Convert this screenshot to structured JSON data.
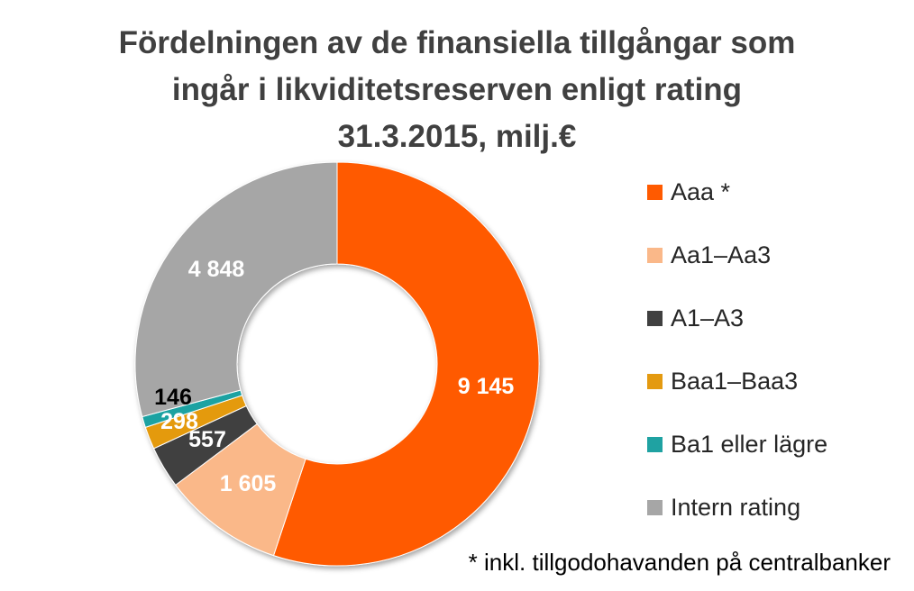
{
  "chart_data": {
    "type": "pie",
    "variant": "donut",
    "title": "Fördelningen av de finansiella tillgångar som ingår i likviditetsreserven enligt rating 31.3.2015, milj.€",
    "title_lines": [
      "Fördelningen av de finansiella tillgångar som",
      "ingår i likviditetsreserven enligt rating",
      "31.3.2015, milj.€"
    ],
    "slices": [
      {
        "name": "Aaa *",
        "value": 9145,
        "label": "9 145",
        "color": "#ff5a00",
        "label_color": "#ffffff"
      },
      {
        "name": "Aa1–Aa3",
        "value": 1605,
        "label": "1 605",
        "color": "#fab889",
        "label_color": "#ffffff"
      },
      {
        "name": "A1–A3",
        "value": 557,
        "label": "557",
        "color": "#404040",
        "label_color": "#ffffff"
      },
      {
        "name": "Baa1–Baa3",
        "value": 298,
        "label": "298",
        "color": "#e49a10",
        "label_color": "#ffffff"
      },
      {
        "name": "Ba1 eller lägre",
        "value": 146,
        "label": "146",
        "color": "#1fa2a2",
        "label_color": "#000000"
      },
      {
        "name": "Intern rating",
        "value": 4848,
        "label": "4 848",
        "color": "#a6a6a6",
        "label_color": "#ffffff"
      }
    ],
    "start_angle_deg": 0,
    "direction": "clockwise",
    "legend_position": "right",
    "footnote": "* inkl. tillgodohavanden på centralbanker"
  }
}
